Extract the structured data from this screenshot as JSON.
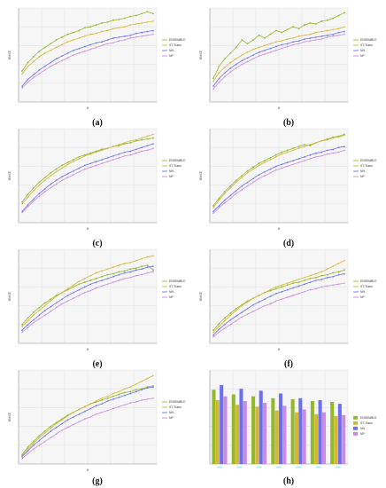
{
  "colors": {
    "ENSEMBLE": "#93b82a",
    "ST-Trans": "#d4b634",
    "NN": "#6b6ff0",
    "NP": "#c98ae0"
  },
  "chart_data": [
    {
      "id": "a",
      "label": "(a)",
      "type": "line",
      "xlabel": "N",
      "ylabel": "RMSE",
      "ylim": [
        0,
        100
      ],
      "legend": "right",
      "x": [
        1,
        2,
        3,
        4,
        5,
        6,
        7,
        8,
        9,
        10,
        11,
        12,
        13,
        14,
        15,
        16,
        17,
        18,
        19,
        20,
        21,
        22,
        23,
        24
      ],
      "series": [
        {
          "name": "ENSEMBLE",
          "values": [
            33,
            42,
            48,
            54,
            58,
            62,
            66,
            69,
            72,
            74,
            76,
            79,
            80,
            82,
            84,
            85,
            87,
            88,
            89,
            91,
            92,
            94,
            96,
            94
          ]
        },
        {
          "name": "ST-Trans",
          "values": [
            30,
            38,
            43,
            48,
            52,
            55,
            58,
            61,
            64,
            66,
            68,
            70,
            72,
            73,
            75,
            76,
            78,
            79,
            80,
            82,
            83,
            84,
            85,
            86
          ]
        },
        {
          "name": "NN",
          "values": [
            17,
            24,
            29,
            34,
            38,
            42,
            46,
            49,
            52,
            55,
            57,
            59,
            61,
            63,
            64,
            66,
            68,
            69,
            70,
            71,
            73,
            74,
            75,
            76
          ]
        },
        {
          "name": "NP",
          "values": [
            15,
            21,
            26,
            30,
            34,
            38,
            41,
            44,
            47,
            50,
            52,
            54,
            56,
            58,
            60,
            62,
            63,
            65,
            66,
            68,
            69,
            70,
            71,
            72
          ]
        }
      ]
    },
    {
      "id": "b",
      "label": "(b)",
      "type": "line",
      "xlabel": "N",
      "ylabel": "RMSE",
      "ylim": [
        0,
        100
      ],
      "legend": "right",
      "x": [
        1,
        2,
        3,
        4,
        5,
        6,
        7,
        8,
        9,
        10,
        11,
        12,
        13,
        14,
        15,
        16,
        17,
        18,
        19,
        20,
        21,
        22,
        23,
        24
      ],
      "series": [
        {
          "name": "ENSEMBLE",
          "values": [
            25,
            38,
            46,
            52,
            58,
            66,
            62,
            66,
            71,
            68,
            72,
            76,
            74,
            77,
            80,
            78,
            82,
            84,
            83,
            86,
            87,
            89,
            92,
            95
          ]
        },
        {
          "name": "ST-Trans",
          "values": [
            22,
            31,
            37,
            42,
            46,
            50,
            53,
            56,
            58,
            60,
            62,
            64,
            65,
            67,
            68,
            70,
            71,
            72,
            74,
            75,
            76,
            77,
            78,
            80
          ]
        },
        {
          "name": "NN",
          "values": [
            17,
            25,
            31,
            36,
            40,
            44,
            47,
            50,
            53,
            55,
            57,
            59,
            61,
            62,
            64,
            65,
            67,
            68,
            69,
            70,
            71,
            72,
            74,
            75
          ]
        },
        {
          "name": "NP",
          "values": [
            14,
            21,
            27,
            32,
            36,
            40,
            43,
            46,
            49,
            51,
            53,
            55,
            57,
            59,
            61,
            62,
            64,
            65,
            66,
            67,
            69,
            70,
            71,
            72
          ]
        }
      ]
    },
    {
      "id": "c",
      "label": "(c)",
      "type": "line",
      "xlabel": "N",
      "ylabel": "RMSE",
      "ylim": [
        0,
        100
      ],
      "legend": "right",
      "x": [
        1,
        2,
        3,
        4,
        5,
        6,
        7,
        8,
        9,
        10,
        11,
        12,
        13,
        14,
        15,
        16,
        17,
        18,
        19,
        20,
        21,
        22,
        23,
        24
      ],
      "series": [
        {
          "name": "ENSEMBLE",
          "values": [
            22,
            30,
            37,
            43,
            48,
            53,
            57,
            61,
            64,
            67,
            70,
            72,
            74,
            76,
            78,
            79,
            81,
            82,
            84,
            85,
            87,
            88,
            89,
            90
          ]
        },
        {
          "name": "ST-Trans",
          "values": [
            20,
            27,
            34,
            40,
            45,
            50,
            54,
            58,
            62,
            65,
            68,
            71,
            73,
            75,
            77,
            79,
            81,
            83,
            85,
            87,
            88,
            90,
            92,
            94
          ]
        },
        {
          "name": "NN",
          "values": [
            12,
            19,
            25,
            31,
            36,
            41,
            45,
            49,
            52,
            55,
            58,
            61,
            63,
            65,
            67,
            69,
            71,
            73,
            75,
            76,
            78,
            80,
            82,
            84
          ]
        },
        {
          "name": "NP",
          "values": [
            11,
            17,
            23,
            28,
            33,
            37,
            41,
            45,
            48,
            51,
            54,
            57,
            59,
            61,
            63,
            65,
            67,
            69,
            71,
            72,
            74,
            76,
            77,
            79
          ]
        }
      ]
    },
    {
      "id": "d",
      "label": "(d)",
      "type": "line",
      "xlabel": "N",
      "ylabel": "RMSE",
      "ylim": [
        0,
        100
      ],
      "legend": "right",
      "x": [
        1,
        2,
        3,
        4,
        5,
        6,
        7,
        8,
        9,
        10,
        11,
        12,
        13,
        14,
        15,
        16,
        17,
        18,
        19,
        20,
        21,
        22,
        23,
        24
      ],
      "series": [
        {
          "name": "ENSEMBLE",
          "values": [
            18,
            26,
            33,
            39,
            45,
            50,
            55,
            59,
            63,
            66,
            69,
            72,
            75,
            77,
            79,
            81,
            83,
            82,
            85,
            87,
            89,
            91,
            92,
            94
          ]
        },
        {
          "name": "ST-Trans",
          "values": [
            16,
            24,
            31,
            37,
            43,
            48,
            53,
            57,
            61,
            64,
            67,
            70,
            73,
            75,
            77,
            79,
            81,
            83,
            85,
            87,
            88,
            90,
            91,
            93
          ]
        },
        {
          "name": "NN",
          "values": [
            12,
            18,
            24,
            29,
            34,
            39,
            43,
            47,
            51,
            54,
            57,
            60,
            62,
            64,
            66,
            68,
            70,
            72,
            74,
            75,
            77,
            78,
            80,
            81
          ]
        },
        {
          "name": "NP",
          "values": [
            10,
            16,
            21,
            26,
            31,
            35,
            39,
            43,
            47,
            50,
            53,
            56,
            58,
            60,
            62,
            64,
            66,
            68,
            70,
            71,
            73,
            74,
            75,
            77
          ]
        }
      ]
    },
    {
      "id": "e",
      "label": "(e)",
      "type": "line",
      "xlabel": "N",
      "ylabel": "RMSE",
      "ylim": [
        0,
        100
      ],
      "legend": "right",
      "x": [
        1,
        2,
        3,
        4,
        5,
        6,
        7,
        8,
        9,
        10,
        11,
        12,
        13,
        14,
        15,
        16,
        17,
        18,
        19,
        20,
        21,
        22,
        23,
        24
      ],
      "series": [
        {
          "name": "ENSEMBLE",
          "values": [
            20,
            27,
            33,
            38,
            43,
            47,
            51,
            54,
            57,
            60,
            63,
            65,
            67,
            69,
            71,
            73,
            74,
            76,
            77,
            79,
            80,
            82,
            83,
            78
          ]
        },
        {
          "name": "ST-Trans",
          "values": [
            18,
            24,
            30,
            35,
            40,
            45,
            50,
            54,
            58,
            62,
            66,
            69,
            72,
            75,
            77,
            79,
            81,
            83,
            85,
            86,
            88,
            90,
            92,
            93
          ]
        },
        {
          "name": "NN",
          "values": [
            14,
            20,
            25,
            30,
            35,
            39,
            43,
            47,
            51,
            54,
            57,
            60,
            63,
            65,
            67,
            69,
            71,
            73,
            75,
            76,
            78,
            79,
            81,
            82
          ]
        },
        {
          "name": "NP",
          "values": [
            12,
            17,
            22,
            26,
            30,
            34,
            38,
            42,
            45,
            48,
            51,
            54,
            56,
            59,
            61,
            63,
            65,
            67,
            69,
            70,
            72,
            73,
            75,
            76
          ]
        }
      ]
    },
    {
      "id": "f",
      "label": "(f)",
      "type": "line",
      "xlabel": "N",
      "ylabel": "RMSE",
      "ylim": [
        0,
        100
      ],
      "legend": "right",
      "x": [
        1,
        2,
        3,
        4,
        5,
        6,
        7,
        8,
        9,
        10,
        11,
        12,
        13,
        14,
        15,
        16,
        17,
        18,
        19,
        20,
        21,
        22,
        23,
        24
      ],
      "series": [
        {
          "name": "ENSEMBLE",
          "values": [
            14,
            21,
            27,
            32,
            37,
            41,
            45,
            48,
            51,
            54,
            56,
            58,
            60,
            62,
            64,
            65,
            67,
            69,
            70,
            72,
            73,
            75,
            76,
            78
          ]
        },
        {
          "name": "ST-Trans",
          "values": [
            12,
            18,
            24,
            30,
            35,
            40,
            44,
            48,
            51,
            54,
            57,
            60,
            62,
            64,
            66,
            68,
            70,
            72,
            74,
            76,
            79,
            82,
            85,
            88
          ]
        },
        {
          "name": "NN",
          "values": [
            9,
            15,
            20,
            25,
            29,
            33,
            37,
            41,
            44,
            47,
            50,
            53,
            55,
            57,
            59,
            61,
            63,
            65,
            67,
            68,
            70,
            71,
            73,
            74
          ]
        },
        {
          "name": "NP",
          "values": [
            7,
            12,
            16,
            20,
            24,
            28,
            31,
            34,
            37,
            40,
            42,
            45,
            47,
            49,
            51,
            53,
            55,
            57,
            58,
            60,
            61,
            62,
            63,
            64
          ]
        }
      ]
    },
    {
      "id": "g",
      "label": "(g)",
      "type": "line",
      "xlabel": "N",
      "ylabel": "RMSE",
      "ylim": [
        0,
        100
      ],
      "legend": "right",
      "x": [
        1,
        2,
        3,
        4,
        5,
        6,
        7,
        8,
        9,
        10,
        11,
        12,
        13,
        14,
        15,
        16,
        17,
        18,
        19,
        20,
        21,
        22,
        23,
        24
      ],
      "series": [
        {
          "name": "ENSEMBLE",
          "values": [
            10,
            18,
            24,
            30,
            35,
            40,
            44,
            48,
            52,
            55,
            58,
            61,
            64,
            66,
            68,
            70,
            72,
            74,
            76,
            77,
            79,
            80,
            82,
            83
          ]
        },
        {
          "name": "ST-Trans",
          "values": [
            9,
            16,
            22,
            28,
            33,
            38,
            43,
            47,
            51,
            55,
            58,
            61,
            64,
            67,
            70,
            72,
            75,
            77,
            80,
            82,
            85,
            88,
            91,
            94
          ]
        },
        {
          "name": "NN",
          "values": [
            8,
            14,
            20,
            25,
            30,
            35,
            39,
            43,
            47,
            50,
            53,
            56,
            59,
            62,
            64,
            67,
            69,
            71,
            73,
            75,
            77,
            79,
            81,
            82
          ]
        },
        {
          "name": "NP",
          "values": [
            6,
            11,
            16,
            20,
            24,
            28,
            32,
            36,
            39,
            42,
            45,
            48,
            50,
            53,
            55,
            57,
            59,
            61,
            63,
            65,
            66,
            68,
            69,
            70
          ]
        }
      ]
    },
    {
      "id": "h",
      "label": "(h)",
      "type": "bar",
      "xlabel": "",
      "ylabel": "",
      "ylim": [
        0,
        100
      ],
      "legend": "right",
      "categories": [
        "",
        "",
        "",
        "",
        "",
        "",
        ""
      ],
      "series": [
        {
          "name": "ENSEMBLE",
          "values": [
            79,
            74,
            72,
            70,
            69,
            67,
            66
          ]
        },
        {
          "name": "ST-Trans",
          "values": [
            68,
            63,
            61,
            57,
            55,
            53,
            51
          ]
        },
        {
          "name": "NN",
          "values": [
            84,
            80,
            78,
            75,
            70,
            68,
            64
          ]
        },
        {
          "name": "NP",
          "values": [
            72,
            67,
            65,
            62,
            58,
            55,
            52
          ]
        }
      ]
    }
  ]
}
